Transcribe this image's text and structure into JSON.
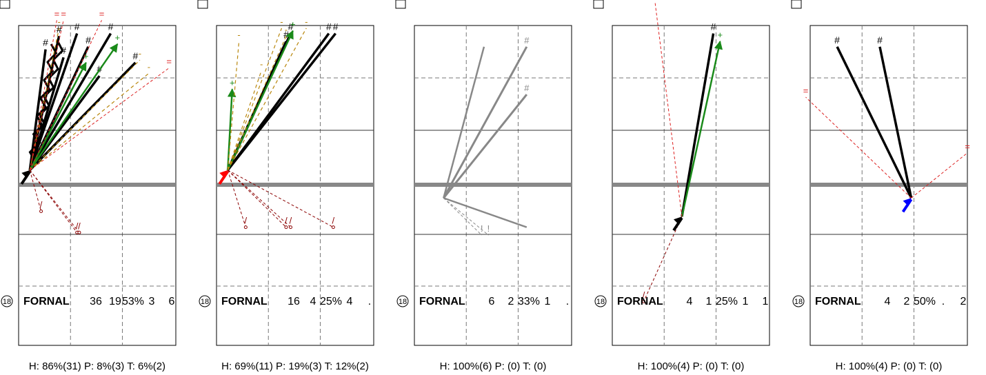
{
  "chart_data": [
    {
      "type": "line",
      "player": {
        "number": "18",
        "name": "FORNAL"
      },
      "stats": [
        "36",
        "19",
        "53%",
        "3",
        "6"
      ],
      "summary": "H: 86%(31)  P: 8%(3)  T: 6%(2)",
      "origin": {
        "x": 0.5,
        "y": 0.55
      },
      "arrow_color": "#000000",
      "series": [
        {
          "style": "made",
          "points": [
            {
              "x": 1.2,
              "y": 5.1
            },
            {
              "x": 1.8,
              "y": 5.6
            },
            {
              "x": 2.0,
              "y": 4.8
            },
            {
              "x": 2.6,
              "y": 5.7
            },
            {
              "x": 3.1,
              "y": 5.2
            },
            {
              "x": 4.1,
              "y": 5.7
            },
            {
              "x": 5.2,
              "y": 4.6
            },
            {
              "x": 3.6,
              "y": 4.1
            }
          ]
        },
        {
          "style": "made_zigzag",
          "points": [
            {
              "x": 1.6,
              "y": 5.3
            },
            {
              "x": 1.9,
              "y": 5.4
            }
          ]
        },
        {
          "style": "assisted",
          "points": [
            {
              "x": 4.4,
              "y": 5.3
            },
            {
              "x": 3.0,
              "y": 4.6
            }
          ]
        },
        {
          "style": "blocked",
          "points": [
            {
              "x": 5.4,
              "y": 4.7
            },
            {
              "x": 5.8,
              "y": 4.2
            },
            {
              "x": 1.8,
              "y": 5.9
            }
          ]
        },
        {
          "style": "out",
          "points": [
            {
              "x": 1.0,
              "y": -1.0
            },
            {
              "x": 2.6,
              "y": -1.8
            },
            {
              "x": 2.7,
              "y": -1.8
            }
          ]
        },
        {
          "style": "over",
          "points": [
            {
              "x": 1.7,
              "y": 6.2
            },
            {
              "x": 2.0,
              "y": 6.2
            },
            {
              "x": 3.7,
              "y": 6.2
            },
            {
              "x": 6.7,
              "y": 4.4
            }
          ]
        }
      ]
    },
    {
      "type": "line",
      "player": {
        "number": "18",
        "name": "FORNAL"
      },
      "stats": [
        "16",
        "4",
        "25%",
        "4",
        "."
      ],
      "summary": "H: 69%(11)  P: 19%(3)  T: 12%(2)",
      "origin": {
        "x": 0.5,
        "y": 0.55
      },
      "arrow_color": "#ff0000",
      "series": [
        {
          "style": "made",
          "points": [
            {
              "x": 3.1,
              "y": 5.4
            },
            {
              "x": 3.3,
              "y": 5.7
            },
            {
              "x": 5.0,
              "y": 5.7
            },
            {
              "x": 5.3,
              "y": 5.7
            }
          ]
        },
        {
          "style": "assisted",
          "points": [
            {
              "x": 3.4,
              "y": 5.8
            },
            {
              "x": 0.7,
              "y": 3.6
            }
          ]
        },
        {
          "style": "blocked",
          "points": [
            {
              "x": 1.0,
              "y": 5.4
            },
            {
              "x": 2.0,
              "y": 4.3
            },
            {
              "x": 2.9,
              "y": 5.9
            },
            {
              "x": 3.1,
              "y": 5.6
            },
            {
              "x": 4.0,
              "y": 5.9
            }
          ]
        },
        {
          "style": "out",
          "points": [
            {
              "x": 1.3,
              "y": -1.6
            },
            {
              "x": 3.1,
              "y": -1.6
            },
            {
              "x": 3.3,
              "y": -1.6
            },
            {
              "x": 5.2,
              "y": -1.6
            }
          ]
        }
      ]
    },
    {
      "type": "line",
      "player": {
        "number": "18",
        "name": "FORNAL"
      },
      "stats": [
        "6",
        "2",
        "33%",
        "1",
        "."
      ],
      "summary": "H: 100%(6)  P: (0)  T: (0)",
      "origin": {
        "x": 1.3,
        "y": -0.5
      },
      "arrow_color": "none",
      "series": [
        {
          "style": "grey_made",
          "points": [
            {
              "x": 5.0,
              "y": 5.2
            },
            {
              "x": 5.0,
              "y": 3.4
            }
          ]
        },
        {
          "style": "grey_miss",
          "points": [
            {
              "x": 3.1,
              "y": 5.2
            },
            {
              "x": 5.0,
              "y": -1.6
            }
          ]
        },
        {
          "style": "grey_blocked",
          "points": [
            {
              "x": 3.0,
              "y": -1.9
            },
            {
              "x": 3.3,
              "y": -1.9
            }
          ]
        }
      ]
    },
    {
      "type": "line",
      "player": {
        "number": "18",
        "name": "FORNAL"
      },
      "stats": [
        "4",
        "1",
        "25%",
        "1",
        "1"
      ],
      "summary": "H: 100%(4)  P: (0)  T: (0)",
      "origin": {
        "x": 3.1,
        "y": -1.2
      },
      "arrow_color": "#000000",
      "series": [
        {
          "style": "made",
          "points": [
            {
              "x": 4.5,
              "y": 5.7
            }
          ]
        },
        {
          "style": "assisted",
          "points": [
            {
              "x": 4.8,
              "y": 5.4
            }
          ]
        },
        {
          "style": "over",
          "points": [
            {
              "x": 1.9,
              "y": 6.9
            }
          ]
        },
        {
          "style": "out",
          "points": [
            {
              "x": 1.4,
              "y": -4.4
            }
          ]
        }
      ]
    },
    {
      "type": "line",
      "player": {
        "number": "18",
        "name": "FORNAL"
      },
      "stats": [
        "4",
        "2",
        "50%",
        ".",
        "2"
      ],
      "summary": "H: 100%(4)  P: (0)  T: (0)",
      "origin": {
        "x": 4.5,
        "y": -0.5
      },
      "arrow_color": "#0000ff",
      "series": [
        {
          "style": "made",
          "points": [
            {
              "x": 1.2,
              "y": 5.2
            },
            {
              "x": 3.1,
              "y": 5.2
            }
          ]
        },
        {
          "style": "over",
          "points": [
            {
              "x": -0.2,
              "y": 3.3
            },
            {
              "x": 7.0,
              "y": 1.2
            }
          ]
        }
      ]
    }
  ]
}
